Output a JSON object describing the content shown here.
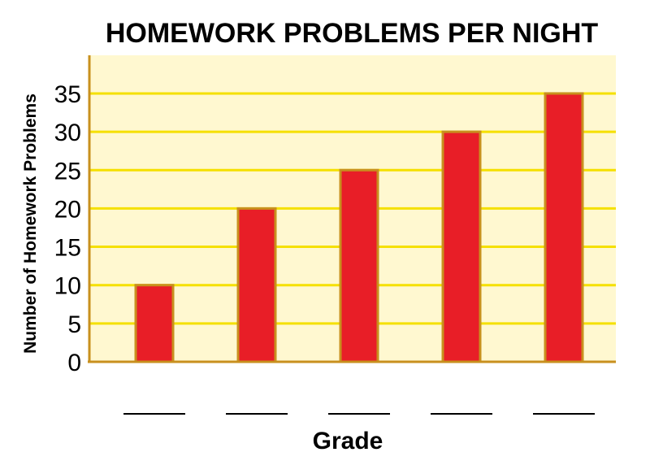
{
  "chart_data": {
    "type": "bar",
    "title": "HOMEWORK PROBLEMS PER NIGHT",
    "xlabel": "Grade",
    "ylabel": "Number of Homework Problems",
    "categories": [
      "",
      "",
      "",
      "",
      ""
    ],
    "values": [
      10,
      20,
      25,
      30,
      35
    ],
    "ylim": [
      0,
      35
    ],
    "yticks": [
      "0",
      "5",
      "10",
      "15",
      "20",
      "25",
      "30",
      "35"
    ],
    "grid": true,
    "colors": {
      "bar": "#e81e27",
      "bar_outline": "#c8901e",
      "plot_background": "#fff8d0",
      "gridline": "#f5e000",
      "axis": "#c8901e",
      "blank_line": "#000000"
    }
  }
}
